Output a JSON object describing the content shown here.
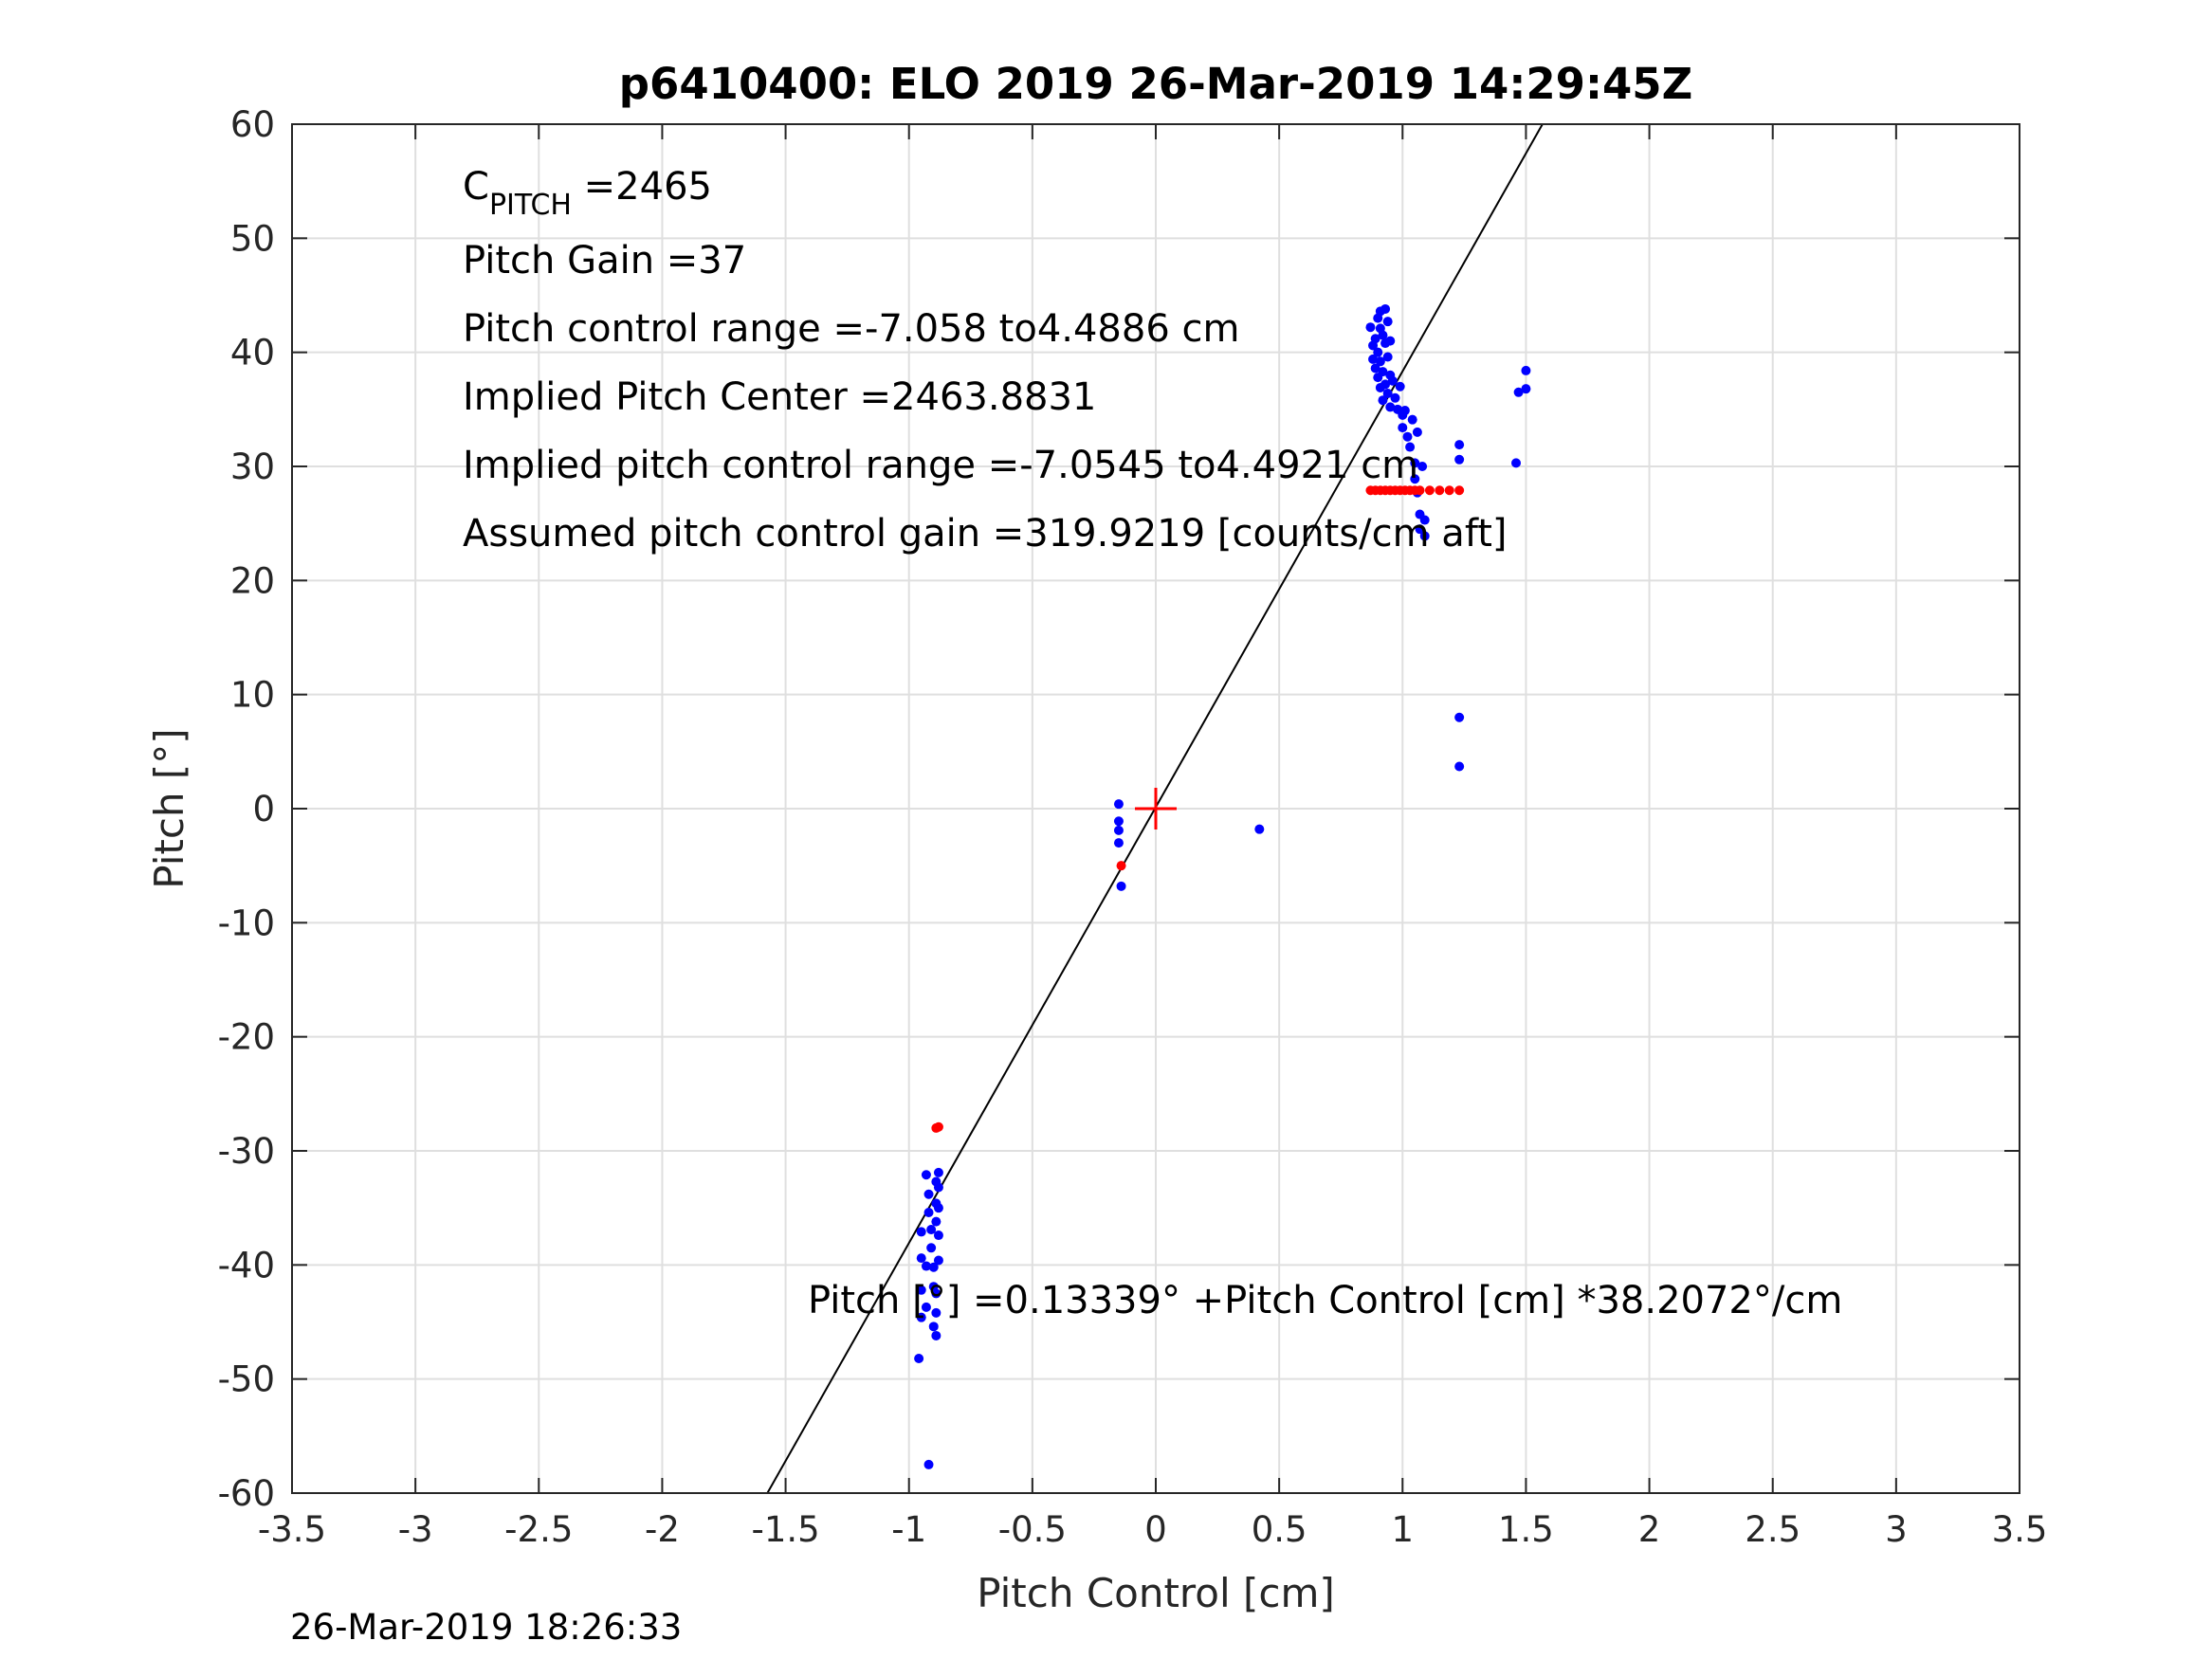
{
  "chart_data": {
    "type": "scatter",
    "title": "p6410400: ELO 2019 26-Mar-2019 14:29:45Z",
    "xlabel": "Pitch Control [cm]",
    "ylabel": "Pitch [°]",
    "xlim": [
      -3.5,
      3.5
    ],
    "ylim": [
      -60,
      60
    ],
    "xticks": [
      -3.5,
      -3,
      -2.5,
      -2,
      -1.5,
      -1,
      -0.5,
      0,
      0.5,
      1,
      1.5,
      2,
      2.5,
      3,
      3.5
    ],
    "xtick_labels": [
      "-3.5",
      "-3",
      "-2.5",
      "-2",
      "-1.5",
      "-1",
      "-0.5",
      "0",
      "0.5",
      "1",
      "1.5",
      "2",
      "2.5",
      "3",
      "3.5"
    ],
    "yticks": [
      -60,
      -50,
      -40,
      -30,
      -20,
      -10,
      0,
      10,
      20,
      30,
      40,
      50,
      60
    ],
    "ytick_labels": [
      "-60",
      "-50",
      "-40",
      "-30",
      "-20",
      "-10",
      "0",
      "10",
      "20",
      "30",
      "40",
      "50",
      "60"
    ],
    "grid": true,
    "fit_line": {
      "intercept": 0.13339,
      "slope": 38.2072,
      "color": "#000000"
    },
    "center_marker": {
      "x": 0,
      "y": 0,
      "color": "#ff0000"
    },
    "series": [
      {
        "color": "#0000ff",
        "points": [
          [
            0.87,
            42.2
          ],
          [
            0.88,
            40.6
          ],
          [
            0.88,
            39.4
          ],
          [
            0.89,
            38.6
          ],
          [
            0.89,
            41.2
          ],
          [
            0.9,
            43.0
          ],
          [
            0.9,
            40.0
          ],
          [
            0.9,
            37.8
          ],
          [
            0.91,
            43.6
          ],
          [
            0.91,
            42.1
          ],
          [
            0.91,
            39.2
          ],
          [
            0.91,
            36.9
          ],
          [
            0.92,
            41.5
          ],
          [
            0.92,
            38.3
          ],
          [
            0.92,
            35.8
          ],
          [
            0.93,
            43.8
          ],
          [
            0.93,
            40.8
          ],
          [
            0.93,
            37.2
          ],
          [
            0.94,
            42.7
          ],
          [
            0.94,
            39.6
          ],
          [
            0.94,
            36.4
          ],
          [
            0.95,
            41.0
          ],
          [
            0.95,
            38.0
          ],
          [
            0.95,
            35.2
          ],
          [
            0.96,
            37.5
          ],
          [
            0.97,
            36.0
          ],
          [
            0.98,
            35.0
          ],
          [
            0.99,
            37.0
          ],
          [
            1.0,
            34.5
          ],
          [
            1.0,
            33.4
          ],
          [
            1.01,
            34.9
          ],
          [
            1.02,
            32.6
          ],
          [
            1.03,
            31.7
          ],
          [
            1.04,
            34.1
          ],
          [
            1.05,
            30.3
          ],
          [
            1.05,
            28.9
          ],
          [
            1.06,
            27.7
          ],
          [
            1.06,
            33.0
          ],
          [
            1.07,
            25.8
          ],
          [
            1.07,
            24.5
          ],
          [
            1.08,
            30.0
          ],
          [
            1.09,
            23.9
          ],
          [
            1.09,
            25.3
          ],
          [
            1.23,
            31.9
          ],
          [
            1.23,
            30.6
          ],
          [
            1.46,
            30.3
          ],
          [
            1.47,
            36.5
          ],
          [
            1.5,
            36.8
          ],
          [
            1.5,
            38.4
          ],
          [
            1.23,
            8.0
          ],
          [
            1.23,
            3.7
          ],
          [
            -0.15,
            0.4
          ],
          [
            -0.15,
            -1.1
          ],
          [
            -0.15,
            -1.9
          ],
          [
            -0.15,
            -3.0
          ],
          [
            -0.14,
            -6.8
          ],
          [
            0.42,
            -1.8
          ],
          [
            -0.93,
            -32.1
          ],
          [
            -0.92,
            -33.8
          ],
          [
            -0.92,
            -35.4
          ],
          [
            -0.91,
            -36.9
          ],
          [
            -0.91,
            -38.5
          ],
          [
            -0.9,
            -40.2
          ],
          [
            -0.9,
            -41.9
          ],
          [
            -0.89,
            -32.7
          ],
          [
            -0.89,
            -34.6
          ],
          [
            -0.89,
            -36.2
          ],
          [
            -0.88,
            -31.9
          ],
          [
            -0.88,
            -33.2
          ],
          [
            -0.88,
            -35.0
          ],
          [
            -0.88,
            -37.4
          ],
          [
            -0.88,
            -39.6
          ],
          [
            -0.89,
            -42.5
          ],
          [
            -0.89,
            -44.2
          ],
          [
            -0.9,
            -45.4
          ],
          [
            -0.89,
            -46.2
          ],
          [
            -0.95,
            -37.1
          ],
          [
            -0.95,
            -39.4
          ],
          [
            -0.95,
            -42.2
          ],
          [
            -0.95,
            -44.6
          ],
          [
            -0.96,
            -48.2
          ],
          [
            -0.93,
            -40.1
          ],
          [
            -0.93,
            -43.7
          ],
          [
            -0.92,
            -57.5
          ]
        ]
      },
      {
        "color": "#ff0000",
        "points": [
          [
            0.87,
            27.9
          ],
          [
            0.89,
            27.9
          ],
          [
            0.91,
            27.9
          ],
          [
            0.93,
            27.9
          ],
          [
            0.95,
            27.9
          ],
          [
            0.97,
            27.9
          ],
          [
            0.99,
            27.9
          ],
          [
            1.01,
            27.9
          ],
          [
            1.03,
            27.9
          ],
          [
            1.05,
            27.9
          ],
          [
            1.07,
            27.9
          ],
          [
            1.11,
            27.9
          ],
          [
            1.15,
            27.9
          ],
          [
            1.19,
            27.9
          ],
          [
            1.23,
            27.9
          ],
          [
            -0.14,
            -5.0
          ],
          [
            -0.88,
            -27.9
          ],
          [
            -0.89,
            -28.0
          ]
        ]
      }
    ],
    "annotations": [
      {
        "text": "C",
        "sub": "PITCH",
        "rest": " =2465"
      },
      {
        "text": "Pitch Gain =37"
      },
      {
        "text": "Pitch control range =-7.058 to4.4886 cm"
      },
      {
        "text": "Implied Pitch Center =2463.8831"
      },
      {
        "text": "Implied pitch control range =-7.0545 to4.4921 cm"
      },
      {
        "text": "Assumed pitch control gain =319.9219 [counts/cm aft]"
      }
    ],
    "equation": "Pitch [°] =0.13339° +Pitch Control [cm] *38.2072°/cm"
  },
  "timestamp": "26-Mar-2019 18:26:33"
}
